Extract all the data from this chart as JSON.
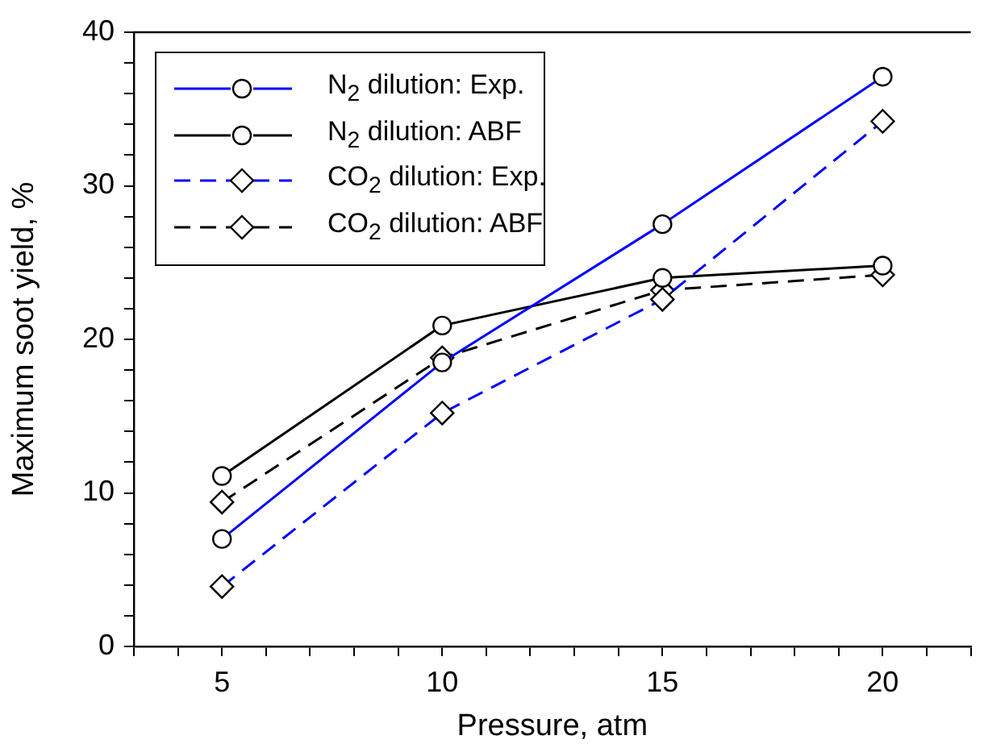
{
  "chart_data": {
    "type": "line",
    "xlabel": "Pressure, atm",
    "ylabel": "Maximum soot yield, %",
    "x": [
      5,
      10,
      15,
      20
    ],
    "xlim": [
      3,
      22
    ],
    "xticks": [
      {
        "value": 3,
        "label": null
      },
      {
        "value": 4,
        "label": null
      },
      5,
      {
        "value": 6,
        "label": null
      },
      {
        "value": 7,
        "label": null
      },
      {
        "value": 8,
        "label": null
      },
      {
        "value": 9,
        "label": null
      },
      10,
      {
        "value": 11,
        "label": null
      },
      {
        "value": 12,
        "label": null
      },
      {
        "value": 13,
        "label": null
      },
      {
        "value": 14,
        "label": null
      },
      15,
      {
        "value": 16,
        "label": null
      },
      {
        "value": 17,
        "label": null
      },
      {
        "value": 18,
        "label": null
      },
      {
        "value": 19,
        "label": null
      },
      20,
      {
        "value": 21,
        "label": null
      },
      {
        "value": 22,
        "label": null
      }
    ],
    "ylim": [
      0,
      40
    ],
    "yticks": [
      0,
      {
        "value": 2,
        "label": null
      },
      {
        "value": 4,
        "label": null
      },
      {
        "value": 6,
        "label": null
      },
      {
        "value": 8,
        "label": null
      },
      10,
      {
        "value": 12,
        "label": null
      },
      {
        "value": 14,
        "label": null
      },
      {
        "value": 16,
        "label": null
      },
      {
        "value": 18,
        "label": null
      },
      20,
      {
        "value": 22,
        "label": null
      },
      {
        "value": 24,
        "label": null
      },
      {
        "value": 26,
        "label": null
      },
      {
        "value": 28,
        "label": null
      },
      30,
      {
        "value": 32,
        "label": null
      },
      {
        "value": 34,
        "label": null
      },
      {
        "value": 36,
        "label": null
      },
      {
        "value": 38,
        "label": null
      },
      40
    ],
    "grid": false,
    "legend": "top left",
    "series": [
      {
        "name": "N$_{2}$ dilution: Exp.",
        "color": "#0000ff",
        "marker": "circle",
        "line_style": "solid",
        "values": [
          7.0,
          18.5,
          27.5,
          37.1
        ]
      },
      {
        "name": "N$_{2}$ dilution: ABF",
        "color": "#000000",
        "marker": "circle",
        "line_style": "solid",
        "values": [
          11.1,
          20.9,
          24.0,
          24.8
        ]
      },
      {
        "name": "CO$_{2}$ dilution: Exp.",
        "color": "#0000ff",
        "marker": "diamond",
        "line_style": "dashed",
        "values": [
          3.9,
          15.2,
          22.6,
          34.2
        ]
      },
      {
        "name": "CO$_{2}$ dilution: ABF",
        "color": "#000000",
        "marker": "diamond",
        "line_style": "dashed",
        "values": [
          9.4,
          18.8,
          23.2,
          24.2
        ]
      }
    ]
  }
}
